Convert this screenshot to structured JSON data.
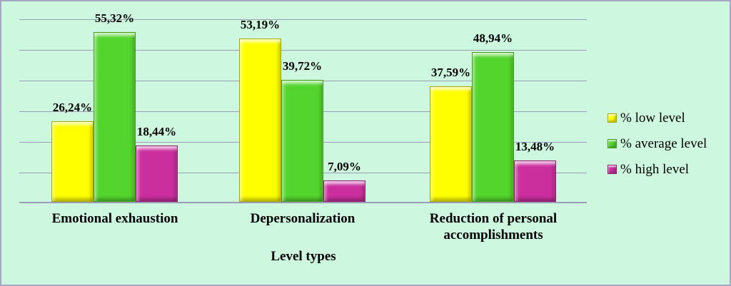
{
  "figure": {
    "background_color": "#cdf7de",
    "border_color": "#a6a7c4",
    "gridline_color": "#9b9db6"
  },
  "chart_data": {
    "type": "bar",
    "title": "",
    "xlabel": "Level types",
    "ylabel": "",
    "ylim": [
      0,
      60
    ],
    "gridline_step": 10,
    "grid": true,
    "legend_position": "right",
    "categories": [
      "Emotional exhaustion",
      "Depersonalization",
      "Reduction of personal accomplishments"
    ],
    "series": [
      {
        "name": "% low level",
        "color": "#ffff00",
        "border_color": "#a8a800",
        "values": [
          26.24,
          53.19,
          37.59
        ],
        "labels": [
          "26,24%",
          "53,19%",
          "37,59%"
        ]
      },
      {
        "name": "% average level",
        "color": "#54d52d",
        "border_color": "#3f9e15",
        "values": [
          55.32,
          39.72,
          48.94
        ],
        "labels": [
          "55,32%",
          "39,72%",
          "48,94%"
        ]
      },
      {
        "name": "% high level",
        "color": "#cb2f9e",
        "border_color": "#8e1a6e",
        "values": [
          18.44,
          7.09,
          13.48
        ],
        "labels": [
          "18,44%",
          "7,09%",
          "13,48%"
        ]
      }
    ]
  }
}
